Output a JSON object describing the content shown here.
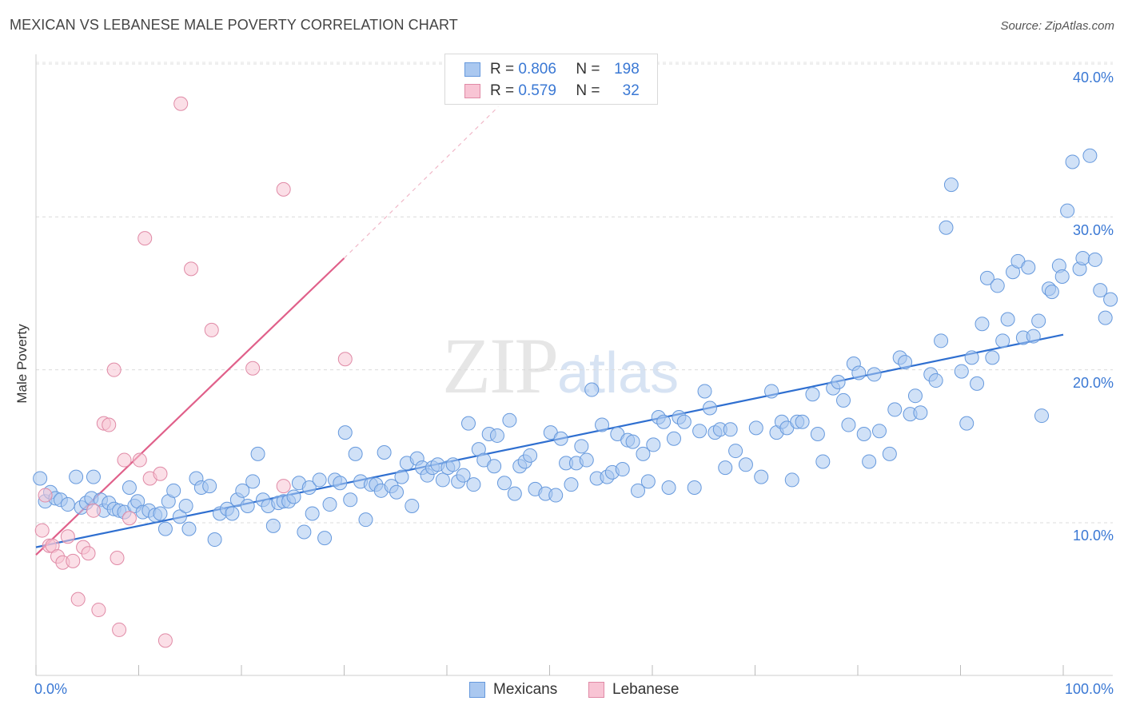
{
  "header": {
    "title": "MEXICAN VS LEBANESE MALE POVERTY CORRELATION CHART",
    "source": "Source: ZipAtlas.com"
  },
  "watermark": {
    "zip": "ZIP",
    "atlas": "atlas"
  },
  "legend": {
    "rows": [
      {
        "r_label": "R =",
        "r_value": "0.806",
        "n_label": "N =",
        "n_value": "198",
        "color": "#aac8f0",
        "border": "#6699dd"
      },
      {
        "r_label": "R =",
        "r_value": "0.579",
        "n_label": "N =",
        "n_value": "32",
        "color": "#f8c4d4",
        "border": "#e08aa6"
      }
    ]
  },
  "bottom_legend": [
    {
      "label": "Mexicans",
      "color": "#aac8f0",
      "border": "#6699dd"
    },
    {
      "label": "Lebanese",
      "color": "#f8c4d4",
      "border": "#e08aa6"
    }
  ],
  "axes": {
    "x_min_label": "0.0%",
    "x_max_label": "100.0%",
    "y_tick_labels": [
      "10.0%",
      "20.0%",
      "30.0%",
      "40.0%"
    ],
    "ylabel": "Male Poverty"
  },
  "chart_data": {
    "type": "scatter",
    "title": "MEXICAN VS LEBANESE MALE POVERTY CORRELATION CHART",
    "xlabel": "",
    "ylabel": "Male Poverty",
    "xlim": [
      0,
      100
    ],
    "ylim": [
      0,
      42
    ],
    "grid": true,
    "legend_position": "top-center",
    "y_ticks": [
      10,
      20,
      30,
      40
    ],
    "series": [
      {
        "name": "Mexicans",
        "color": "#aac8f0",
        "stroke": "#6699dd",
        "trend": {
          "x": [
            0,
            100
          ],
          "y": [
            8.4,
            22.3
          ],
          "color": "#2f6fd0"
        },
        "points": [
          [
            0.4,
            12.9
          ],
          [
            0.9,
            11.4
          ],
          [
            1.4,
            12.0
          ],
          [
            1.9,
            11.6
          ],
          [
            2.4,
            11.5
          ],
          [
            3.1,
            11.2
          ],
          [
            3.9,
            13.0
          ],
          [
            4.4,
            11.0
          ],
          [
            4.9,
            11.3
          ],
          [
            5.4,
            11.6
          ],
          [
            5.6,
            13.0
          ],
          [
            6.3,
            11.5
          ],
          [
            6.6,
            10.8
          ],
          [
            7.1,
            11.3
          ],
          [
            7.6,
            10.9
          ],
          [
            8.1,
            10.8
          ],
          [
            8.6,
            10.7
          ],
          [
            9.1,
            12.3
          ],
          [
            9.6,
            11.1
          ],
          [
            9.9,
            11.4
          ],
          [
            10.4,
            10.7
          ],
          [
            11.0,
            10.8
          ],
          [
            11.6,
            10.5
          ],
          [
            12.1,
            10.6
          ],
          [
            12.6,
            9.6
          ],
          [
            12.9,
            11.4
          ],
          [
            13.4,
            12.1
          ],
          [
            14.0,
            10.4
          ],
          [
            14.6,
            11.1
          ],
          [
            14.9,
            9.6
          ],
          [
            15.6,
            12.9
          ],
          [
            16.1,
            12.3
          ],
          [
            16.9,
            12.4
          ],
          [
            17.4,
            8.9
          ],
          [
            17.9,
            10.6
          ],
          [
            18.6,
            10.9
          ],
          [
            19.1,
            10.6
          ],
          [
            19.6,
            11.5
          ],
          [
            20.1,
            12.1
          ],
          [
            20.6,
            11.1
          ],
          [
            21.1,
            12.7
          ],
          [
            21.6,
            14.5
          ],
          [
            22.1,
            11.5
          ],
          [
            22.6,
            11.1
          ],
          [
            23.1,
            9.8
          ],
          [
            23.6,
            11.3
          ],
          [
            24.1,
            11.4
          ],
          [
            24.6,
            11.4
          ],
          [
            25.1,
            11.7
          ],
          [
            25.6,
            12.6
          ],
          [
            26.1,
            9.4
          ],
          [
            26.6,
            12.3
          ],
          [
            26.9,
            10.6
          ],
          [
            27.6,
            12.8
          ],
          [
            28.1,
            9.0
          ],
          [
            28.6,
            11.2
          ],
          [
            29.1,
            12.8
          ],
          [
            29.6,
            12.6
          ],
          [
            30.1,
            15.9
          ],
          [
            30.6,
            11.5
          ],
          [
            31.1,
            14.5
          ],
          [
            31.6,
            12.7
          ],
          [
            32.1,
            10.2
          ],
          [
            32.6,
            12.5
          ],
          [
            33.1,
            12.5
          ],
          [
            33.6,
            12.1
          ],
          [
            33.9,
            14.6
          ],
          [
            34.6,
            12.4
          ],
          [
            35.1,
            12.0
          ],
          [
            35.6,
            13.0
          ],
          [
            36.1,
            13.9
          ],
          [
            36.6,
            11.1
          ],
          [
            37.1,
            14.2
          ],
          [
            37.6,
            13.6
          ],
          [
            38.1,
            13.1
          ],
          [
            38.6,
            13.6
          ],
          [
            39.1,
            13.8
          ],
          [
            39.6,
            12.8
          ],
          [
            40.1,
            13.6
          ],
          [
            40.6,
            13.8
          ],
          [
            41.1,
            12.7
          ],
          [
            41.6,
            13.1
          ],
          [
            42.1,
            16.5
          ],
          [
            42.6,
            12.5
          ],
          [
            43.1,
            14.8
          ],
          [
            43.6,
            14.1
          ],
          [
            44.1,
            15.8
          ],
          [
            44.6,
            13.7
          ],
          [
            44.9,
            15.7
          ],
          [
            45.6,
            12.6
          ],
          [
            46.1,
            16.7
          ],
          [
            46.6,
            11.9
          ],
          [
            47.1,
            13.7
          ],
          [
            47.6,
            14.0
          ],
          [
            48.1,
            14.4
          ],
          [
            48.6,
            12.2
          ],
          [
            49.6,
            11.9
          ],
          [
            50.1,
            15.9
          ],
          [
            50.6,
            11.8
          ],
          [
            51.1,
            15.5
          ],
          [
            51.6,
            13.9
          ],
          [
            52.1,
            12.5
          ],
          [
            52.6,
            13.9
          ],
          [
            53.1,
            15.0
          ],
          [
            53.6,
            14.1
          ],
          [
            54.1,
            18.7
          ],
          [
            54.6,
            12.9
          ],
          [
            55.1,
            16.4
          ],
          [
            55.6,
            13.0
          ],
          [
            56.1,
            13.3
          ],
          [
            56.6,
            15.8
          ],
          [
            57.1,
            13.5
          ],
          [
            57.6,
            15.4
          ],
          [
            58.1,
            15.3
          ],
          [
            58.6,
            12.1
          ],
          [
            59.1,
            14.5
          ],
          [
            59.6,
            12.7
          ],
          [
            60.1,
            15.1
          ],
          [
            60.6,
            16.9
          ],
          [
            61.1,
            16.6
          ],
          [
            61.6,
            12.3
          ],
          [
            62.1,
            15.5
          ],
          [
            62.6,
            16.9
          ],
          [
            63.1,
            16.6
          ],
          [
            64.1,
            12.3
          ],
          [
            64.6,
            16.0
          ],
          [
            65.1,
            18.6
          ],
          [
            65.6,
            17.5
          ],
          [
            66.1,
            15.9
          ],
          [
            66.6,
            16.1
          ],
          [
            67.1,
            13.6
          ],
          [
            67.6,
            16.1
          ],
          [
            68.1,
            14.7
          ],
          [
            69.1,
            13.8
          ],
          [
            70.1,
            16.2
          ],
          [
            70.6,
            13.0
          ],
          [
            71.6,
            18.6
          ],
          [
            72.1,
            15.9
          ],
          [
            72.6,
            16.6
          ],
          [
            73.1,
            16.2
          ],
          [
            73.6,
            12.8
          ],
          [
            74.1,
            16.6
          ],
          [
            74.6,
            16.6
          ],
          [
            75.6,
            18.4
          ],
          [
            76.1,
            15.8
          ],
          [
            76.6,
            14.0
          ],
          [
            77.6,
            18.8
          ],
          [
            78.1,
            19.2
          ],
          [
            78.6,
            18.0
          ],
          [
            79.1,
            16.4
          ],
          [
            79.6,
            20.4
          ],
          [
            80.1,
            19.8
          ],
          [
            80.6,
            15.8
          ],
          [
            81.1,
            14.0
          ],
          [
            81.6,
            19.7
          ],
          [
            82.1,
            16.0
          ],
          [
            83.1,
            14.5
          ],
          [
            83.6,
            17.4
          ],
          [
            84.1,
            20.8
          ],
          [
            84.6,
            20.5
          ],
          [
            85.1,
            17.1
          ],
          [
            85.6,
            18.3
          ],
          [
            86.1,
            17.2
          ],
          [
            87.1,
            19.7
          ],
          [
            87.6,
            19.3
          ],
          [
            88.1,
            21.9
          ],
          [
            88.6,
            29.3
          ],
          [
            89.1,
            32.1
          ],
          [
            90.1,
            19.9
          ],
          [
            90.6,
            16.5
          ],
          [
            91.1,
            20.8
          ],
          [
            91.6,
            19.1
          ],
          [
            92.1,
            23.0
          ],
          [
            92.6,
            26.0
          ],
          [
            93.1,
            20.8
          ],
          [
            93.6,
            25.5
          ],
          [
            94.1,
            21.9
          ],
          [
            94.6,
            23.3
          ],
          [
            95.1,
            26.4
          ],
          [
            95.6,
            27.1
          ],
          [
            96.1,
            22.1
          ],
          [
            96.6,
            26.7
          ],
          [
            97.1,
            22.2
          ],
          [
            97.6,
            23.2
          ],
          [
            97.9,
            17.0
          ],
          [
            98.6,
            25.3
          ],
          [
            98.9,
            25.1
          ],
          [
            99.6,
            26.8
          ],
          [
            99.9,
            26.1
          ],
          [
            100.4,
            30.4
          ],
          [
            100.9,
            33.6
          ],
          [
            101.6,
            26.6
          ],
          [
            101.9,
            27.3
          ],
          [
            102.6,
            34.0
          ],
          [
            103.1,
            27.2
          ],
          [
            103.6,
            25.2
          ],
          [
            104.1,
            23.4
          ],
          [
            104.6,
            24.6
          ]
        ]
      },
      {
        "name": "Lebanese",
        "color": "#f8c4d4",
        "stroke": "#e08aa6",
        "trend": {
          "x": [
            0,
            30
          ],
          "y": [
            7.9,
            27.3
          ],
          "color": "#e0608a",
          "dashed_extension_to": [
            45,
            37.2
          ]
        },
        "points": [
          [
            0.6,
            9.5
          ],
          [
            0.9,
            11.8
          ],
          [
            1.3,
            8.5
          ],
          [
            1.6,
            8.5
          ],
          [
            2.1,
            7.8
          ],
          [
            2.6,
            7.4
          ],
          [
            3.1,
            9.1
          ],
          [
            3.6,
            7.5
          ],
          [
            4.1,
            5.0
          ],
          [
            4.6,
            8.4
          ],
          [
            5.1,
            8.0
          ],
          [
            5.6,
            10.8
          ],
          [
            6.1,
            4.3
          ],
          [
            6.6,
            16.5
          ],
          [
            7.1,
            16.4
          ],
          [
            7.6,
            20.0
          ],
          [
            7.9,
            7.7
          ],
          [
            8.1,
            3.0
          ],
          [
            8.6,
            14.1
          ],
          [
            9.1,
            10.3
          ],
          [
            10.1,
            14.1
          ],
          [
            10.6,
            28.6
          ],
          [
            11.1,
            12.9
          ],
          [
            12.1,
            13.2
          ],
          [
            12.6,
            2.3
          ],
          [
            14.1,
            37.4
          ],
          [
            15.1,
            26.6
          ],
          [
            17.1,
            22.6
          ],
          [
            21.1,
            20.1
          ],
          [
            24.1,
            31.8
          ],
          [
            24.1,
            12.4
          ],
          [
            30.1,
            20.7
          ]
        ]
      }
    ]
  }
}
